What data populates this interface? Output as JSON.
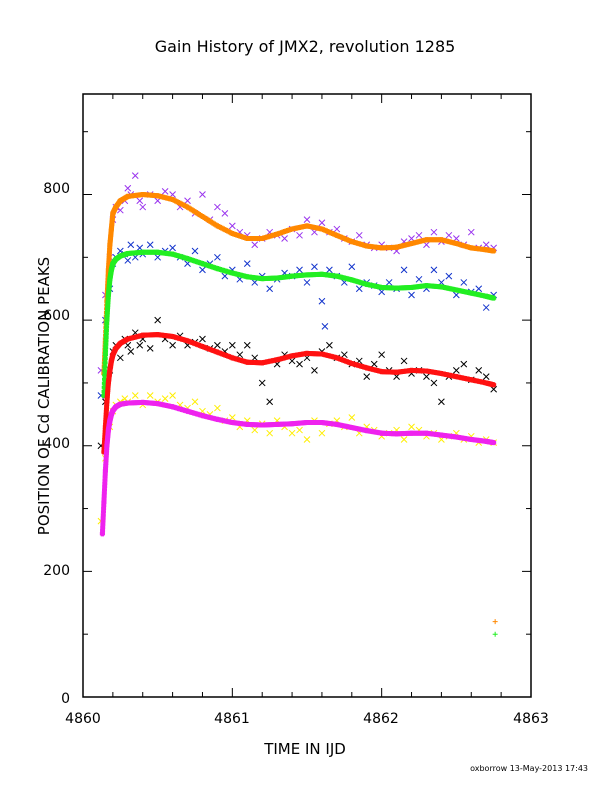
{
  "chart_data": {
    "type": "scatter",
    "title": "Gain History of JMX2, revolution 1285",
    "xlabel": "TIME IN IJD",
    "ylabel": "POSITION OF Cd CALIBRATION PEAKS",
    "footer": "oxborrow 13-May-2013 17:43",
    "xlim": [
      4860,
      4863
    ],
    "ylim": [
      0,
      960
    ],
    "x_ticks": [
      "4860",
      "4861",
      "4862",
      "4863"
    ],
    "y_ticks": [
      "0",
      "200",
      "400",
      "600",
      "800"
    ],
    "grid": false,
    "legend": "none",
    "series": [
      {
        "marker": "x",
        "color": "#9933ee",
        "size": 3,
        "x": [
          4860.12,
          4860.15,
          4860.18,
          4860.2,
          4860.22,
          4860.25,
          4860.28,
          4860.3,
          4860.32,
          4860.35,
          4860.38,
          4860.4,
          4860.45,
          4860.5,
          4860.55,
          4860.6,
          4860.65,
          4860.7,
          4860.75,
          4860.8,
          4860.85,
          4860.9,
          4860.95,
          4861.0,
          4861.05,
          4861.1,
          4861.15,
          4861.2,
          4861.25,
          4861.3,
          4861.35,
          4861.4,
          4861.45,
          4861.5,
          4861.55,
          4861.6,
          4861.65,
          4861.7,
          4861.75,
          4861.8,
          4861.85,
          4861.9,
          4861.95,
          4862.0,
          4862.05,
          4862.1,
          4862.15,
          4862.2,
          4862.25,
          4862.3,
          4862.35,
          4862.4,
          4862.45,
          4862.5,
          4862.55,
          4862.6,
          4862.65,
          4862.7,
          4862.75
        ],
        "y": [
          520,
          640,
          700,
          760,
          780,
          775,
          790,
          810,
          800,
          830,
          790,
          780,
          800,
          790,
          805,
          800,
          780,
          790,
          770,
          800,
          760,
          780,
          770,
          750,
          740,
          735,
          720,
          730,
          740,
          735,
          730,
          745,
          735,
          760,
          740,
          755,
          740,
          745,
          730,
          725,
          735,
          720,
          715,
          720,
          715,
          710,
          725,
          730,
          735,
          720,
          740,
          725,
          735,
          730,
          720,
          740,
          715,
          720,
          715
        ]
      },
      {
        "marker": "x",
        "color": "#1133cc",
        "size": 3,
        "x": [
          4860.12,
          4860.15,
          4860.18,
          4860.2,
          4860.22,
          4860.25,
          4860.28,
          4860.3,
          4860.32,
          4860.35,
          4860.38,
          4860.4,
          4860.45,
          4860.5,
          4860.55,
          4860.6,
          4860.65,
          4860.7,
          4860.75,
          4860.8,
          4860.85,
          4860.9,
          4860.95,
          4861.0,
          4861.05,
          4861.1,
          4861.15,
          4861.2,
          4861.25,
          4861.3,
          4861.35,
          4861.4,
          4861.45,
          4861.5,
          4861.55,
          4861.6,
          4861.62,
          4861.65,
          4861.7,
          4861.75,
          4861.8,
          4861.85,
          4861.9,
          4861.95,
          4862.0,
          4862.05,
          4862.1,
          4862.15,
          4862.2,
          4862.25,
          4862.3,
          4862.35,
          4862.4,
          4862.45,
          4862.5,
          4862.55,
          4862.6,
          4862.65,
          4862.7,
          4862.75
        ],
        "y": [
          480,
          600,
          650,
          690,
          700,
          710,
          705,
          695,
          720,
          700,
          715,
          705,
          720,
          700,
          710,
          715,
          700,
          690,
          710,
          680,
          690,
          700,
          670,
          680,
          665,
          690,
          660,
          670,
          650,
          665,
          675,
          670,
          680,
          660,
          685,
          630,
          590,
          680,
          670,
          660,
          685,
          650,
          660,
          655,
          645,
          660,
          650,
          680,
          640,
          665,
          650,
          680,
          660,
          670,
          640,
          660,
          645,
          650,
          620,
          640
        ]
      },
      {
        "marker": "x",
        "color": "#000000",
        "size": 3,
        "x": [
          4860.12,
          4860.15,
          4860.18,
          4860.2,
          4860.22,
          4860.25,
          4860.28,
          4860.3,
          4860.32,
          4860.35,
          4860.38,
          4860.4,
          4860.45,
          4860.5,
          4860.55,
          4860.6,
          4860.65,
          4860.7,
          4860.75,
          4860.8,
          4860.85,
          4860.9,
          4860.95,
          4861.0,
          4861.05,
          4861.1,
          4861.15,
          4861.2,
          4861.25,
          4861.3,
          4861.35,
          4861.4,
          4861.45,
          4861.5,
          4861.55,
          4861.6,
          4861.65,
          4861.7,
          4861.75,
          4861.8,
          4861.85,
          4861.9,
          4861.95,
          4862.0,
          4862.05,
          4862.1,
          4862.15,
          4862.2,
          4862.25,
          4862.3,
          4862.35,
          4862.4,
          4862.45,
          4862.5,
          4862.55,
          4862.6,
          4862.65,
          4862.7,
          4862.75
        ],
        "y": [
          400,
          470,
          520,
          550,
          560,
          540,
          570,
          560,
          550,
          580,
          560,
          570,
          555,
          600,
          570,
          560,
          575,
          560,
          565,
          570,
          555,
          560,
          550,
          560,
          545,
          560,
          540,
          500,
          470,
          530,
          545,
          535,
          530,
          540,
          520,
          550,
          560,
          540,
          545,
          530,
          535,
          510,
          530,
          545,
          520,
          510,
          535,
          515,
          520,
          510,
          500,
          470,
          510,
          520,
          530,
          505,
          520,
          510,
          490
        ]
      },
      {
        "marker": "x",
        "color": "#ffee00",
        "size": 3,
        "x": [
          4860.12,
          4860.15,
          4860.18,
          4860.2,
          4860.22,
          4860.25,
          4860.28,
          4860.3,
          4860.35,
          4860.4,
          4860.45,
          4860.5,
          4860.55,
          4860.6,
          4860.65,
          4860.7,
          4860.75,
          4860.8,
          4860.85,
          4860.9,
          4860.95,
          4861.0,
          4861.05,
          4861.1,
          4861.15,
          4861.2,
          4861.25,
          4861.3,
          4861.35,
          4861.4,
          4861.45,
          4861.5,
          4861.55,
          4861.6,
          4861.65,
          4861.7,
          4861.75,
          4861.8,
          4861.85,
          4861.9,
          4861.95,
          4862.0,
          4862.05,
          4862.1,
          4862.15,
          4862.2,
          4862.25,
          4862.3,
          4862.35,
          4862.4,
          4862.45,
          4862.5,
          4862.55,
          4862.6,
          4862.65,
          4862.7,
          4862.75
        ],
        "y": [
          280,
          380,
          430,
          455,
          465,
          470,
          475,
          470,
          480,
          465,
          480,
          470,
          475,
          480,
          465,
          460,
          470,
          455,
          450,
          460,
          440,
          445,
          430,
          440,
          425,
          435,
          420,
          440,
          430,
          420,
          425,
          410,
          440,
          420,
          435,
          440,
          430,
          445,
          420,
          430,
          425,
          415,
          420,
          425,
          410,
          430,
          425,
          415,
          420,
          410,
          415,
          420,
          410,
          415,
          405,
          410,
          405
        ]
      },
      {
        "marker": "+",
        "color": "#ff8800",
        "size": 2.5,
        "emphasis": true,
        "x": [
          4860.14,
          4860.15,
          4860.16,
          4860.17,
          4860.18,
          4860.19,
          4860.2,
          4860.22,
          4860.25,
          4860.3,
          4860.4,
          4860.5,
          4860.6,
          4860.7,
          4860.8,
          4860.9,
          4861.0,
          4861.1,
          4861.2,
          4861.3,
          4861.4,
          4861.5,
          4861.6,
          4861.7,
          4861.8,
          4861.9,
          4862.0,
          4862.1,
          4862.2,
          4862.3,
          4862.4,
          4862.5,
          4862.6,
          4862.7,
          4862.75
        ],
        "y": [
          515,
          570,
          630,
          680,
          720,
          745,
          770,
          780,
          790,
          797,
          800,
          798,
          792,
          780,
          765,
          750,
          738,
          730,
          730,
          737,
          745,
          750,
          745,
          735,
          725,
          718,
          715,
          716,
          722,
          728,
          728,
          722,
          715,
          712,
          710
        ]
      },
      {
        "marker": "+",
        "color": "#22ee22",
        "size": 2.5,
        "emphasis": true,
        "x": [
          4860.14,
          4860.15,
          4860.16,
          4860.17,
          4860.18,
          4860.19,
          4860.2,
          4860.22,
          4860.25,
          4860.3,
          4860.4,
          4860.5,
          4860.6,
          4860.7,
          4860.8,
          4860.9,
          4861.0,
          4861.1,
          4861.2,
          4861.3,
          4861.4,
          4861.5,
          4861.6,
          4861.7,
          4861.8,
          4861.9,
          4862.0,
          4862.1,
          4862.2,
          4862.3,
          4862.4,
          4862.5,
          4862.6,
          4862.7,
          4862.75
        ],
        "y": [
          480,
          545,
          600,
          640,
          665,
          680,
          690,
          697,
          702,
          706,
          708,
          708,
          705,
          698,
          690,
          682,
          675,
          669,
          666,
          667,
          670,
          672,
          673,
          670,
          664,
          657,
          652,
          651,
          652,
          655,
          653,
          648,
          643,
          638,
          635
        ]
      },
      {
        "marker": "+",
        "color": "#ff1111",
        "size": 2.5,
        "emphasis": true,
        "x": [
          4860.14,
          4860.15,
          4860.16,
          4860.17,
          4860.18,
          4860.19,
          4860.2,
          4860.22,
          4860.25,
          4860.3,
          4860.4,
          4860.5,
          4860.6,
          4860.7,
          4860.8,
          4860.9,
          4861.0,
          4861.1,
          4861.2,
          4861.3,
          4861.4,
          4861.5,
          4861.6,
          4861.7,
          4861.8,
          4861.9,
          4862.0,
          4862.1,
          4862.2,
          4862.3,
          4862.4,
          4862.5,
          4862.6,
          4862.7,
          4862.75
        ],
        "y": [
          390,
          430,
          470,
          500,
          520,
          535,
          545,
          555,
          563,
          570,
          576,
          577,
          574,
          567,
          558,
          549,
          540,
          533,
          532,
          537,
          543,
          547,
          546,
          540,
          531,
          524,
          518,
          517,
          520,
          519,
          515,
          510,
          505,
          500,
          497
        ]
      },
      {
        "marker": "+",
        "color": "#ee22ee",
        "size": 2.5,
        "emphasis": true,
        "x": [
          4860.13,
          4860.14,
          4860.15,
          4860.16,
          4860.17,
          4860.18,
          4860.19,
          4860.2,
          4860.22,
          4860.25,
          4860.3,
          4860.4,
          4860.5,
          4860.6,
          4860.7,
          4860.8,
          4860.9,
          4861.0,
          4861.1,
          4861.2,
          4861.3,
          4861.4,
          4861.5,
          4861.6,
          4861.7,
          4861.8,
          4861.9,
          4862.0,
          4862.1,
          4862.2,
          4862.3,
          4862.4,
          4862.5,
          4862.6,
          4862.7,
          4862.75
        ],
        "y": [
          260,
          310,
          360,
          400,
          425,
          440,
          450,
          456,
          462,
          466,
          468,
          469,
          467,
          462,
          455,
          448,
          442,
          437,
          434,
          433,
          434,
          435,
          437,
          437,
          434,
          429,
          424,
          420,
          419,
          420,
          420,
          417,
          414,
          410,
          407,
          405
        ]
      },
      {
        "marker": "+",
        "color": "#ff8800",
        "size": 2.5,
        "x": [
          4862.76
        ],
        "y": [
          120
        ]
      },
      {
        "marker": "+",
        "color": "#22ee22",
        "size": 2.5,
        "x": [
          4862.76
        ],
        "y": [
          100
        ]
      }
    ]
  }
}
